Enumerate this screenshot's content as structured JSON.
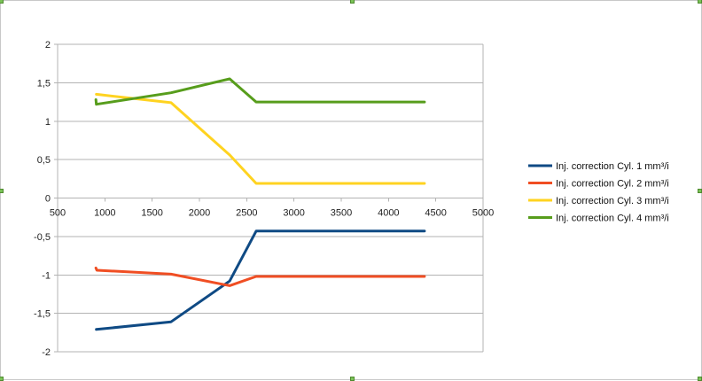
{
  "chart_data": {
    "type": "line",
    "title": "",
    "xlabel": "",
    "ylabel": "",
    "xlim": [
      500,
      5000
    ],
    "ylim": [
      -2,
      2
    ],
    "x_ticks": [
      500,
      1000,
      1500,
      2000,
      2500,
      3000,
      3500,
      4000,
      4500,
      5000
    ],
    "x_tick_labels": [
      "500",
      "1000",
      "1500",
      "2000",
      "2500",
      "3000",
      "3500",
      "4000",
      "4500",
      "5000"
    ],
    "y_ticks": [
      2,
      1.5,
      1,
      0.5,
      0,
      -0.5,
      -1,
      -1.5,
      -2
    ],
    "y_tick_labels": [
      "2",
      "1,5",
      "1",
      "0,5",
      "0",
      "-0,5",
      "-1",
      "-1,5",
      "-2"
    ],
    "grid": true,
    "legend_position": "right",
    "series": [
      {
        "name": "Inj. correction Cyl. 1 mm³/i",
        "color": "#0f4a84",
        "points": [
          [
            910,
            -1.71
          ],
          [
            1700,
            -1.61
          ],
          [
            2320,
            -1.08
          ],
          [
            2600,
            -0.43
          ],
          [
            4380,
            -0.43
          ]
        ]
      },
      {
        "name": "Inj. correction Cyl. 2 mm³/i",
        "color": "#f04e23",
        "points": [
          [
            905,
            -0.91
          ],
          [
            915,
            -0.94
          ],
          [
            1700,
            -0.99
          ],
          [
            2320,
            -1.14
          ],
          [
            2600,
            -1.02
          ],
          [
            4380,
            -1.02
          ]
        ]
      },
      {
        "name": "Inj. correction Cyl. 3 mm³/i",
        "color": "#ffd320",
        "points": [
          [
            910,
            1.35
          ],
          [
            1700,
            1.24
          ],
          [
            2320,
            0.56
          ],
          [
            2600,
            0.19
          ],
          [
            4380,
            0.19
          ]
        ]
      },
      {
        "name": "Inj. correction Cyl. 4 mm³/i",
        "color": "#579d1c",
        "points": [
          [
            905,
            1.28
          ],
          [
            910,
            1.22
          ],
          [
            1700,
            1.37
          ],
          [
            2320,
            1.55
          ],
          [
            2600,
            1.25
          ],
          [
            4380,
            1.25
          ]
        ]
      }
    ]
  }
}
